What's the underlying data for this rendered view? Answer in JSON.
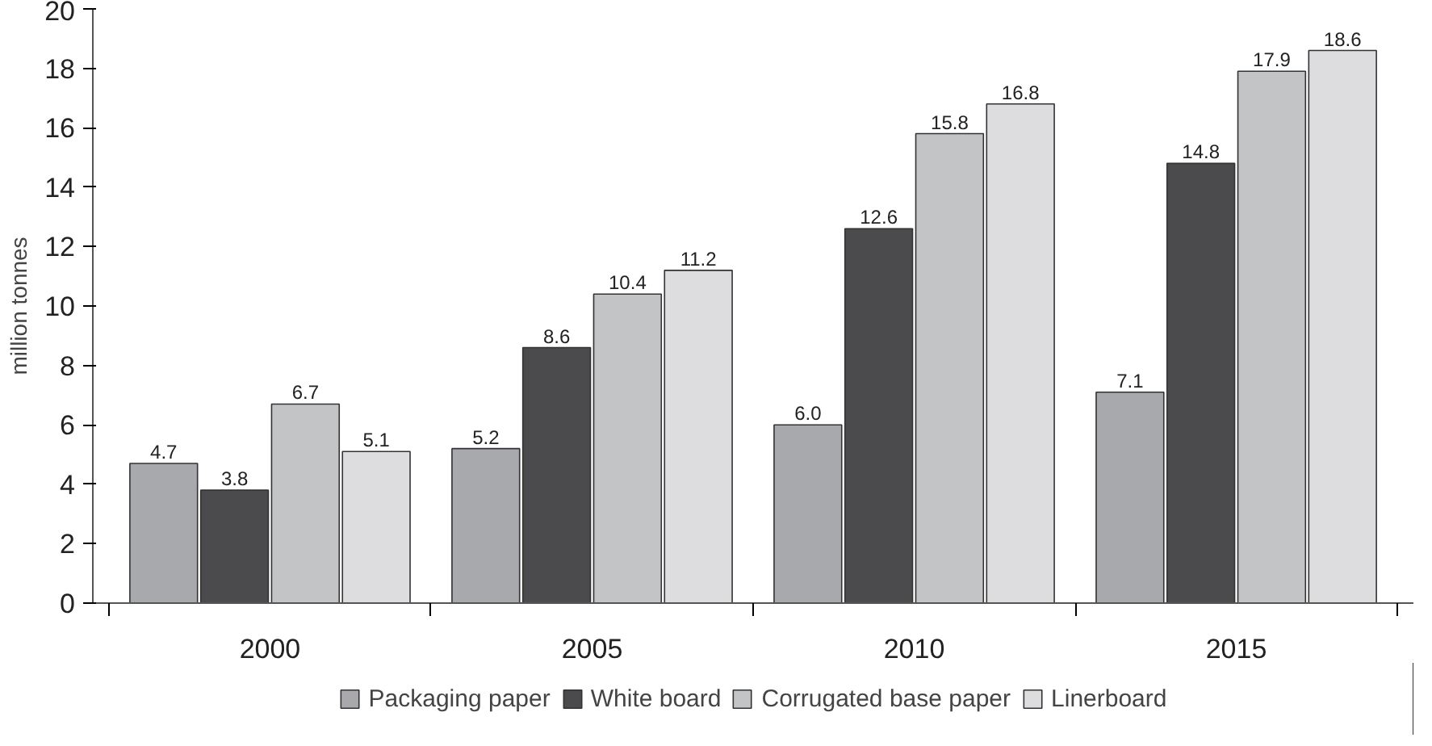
{
  "chart_data": {
    "type": "bar",
    "ylabel": "million tonnes",
    "categories": [
      "2000",
      "2005",
      "2010",
      "2015"
    ],
    "series": [
      {
        "name": "Packaging paper",
        "color": "#a8a9ad",
        "values": [
          4.7,
          5.2,
          6.0,
          7.1
        ],
        "value_labels": [
          "4.7",
          "5.2",
          "6.0",
          "7.1"
        ]
      },
      {
        "name": "White board",
        "color": "#4b4b4d",
        "values": [
          3.8,
          8.6,
          12.6,
          14.8
        ],
        "value_labels": [
          "3.8",
          "8.6",
          "12.6",
          "14.8"
        ]
      },
      {
        "name": "Corrugated base paper",
        "color": "#c3c4c6",
        "values": [
          6.7,
          10.4,
          15.8,
          17.9
        ],
        "value_labels": [
          "6.7",
          "10.4",
          "15.8",
          "17.9"
        ]
      },
      {
        "name": "Linerboard",
        "color": "#dddde0",
        "values": [
          5.1,
          11.2,
          16.8,
          18.6
        ],
        "value_labels": [
          "5.1",
          "11.2",
          "16.8",
          "18.6"
        ]
      }
    ],
    "ylim": [
      0,
      20
    ],
    "yticks": [
      0,
      2,
      4,
      6,
      8,
      10,
      12,
      14,
      16,
      18,
      20
    ],
    "legend": "bottom"
  }
}
